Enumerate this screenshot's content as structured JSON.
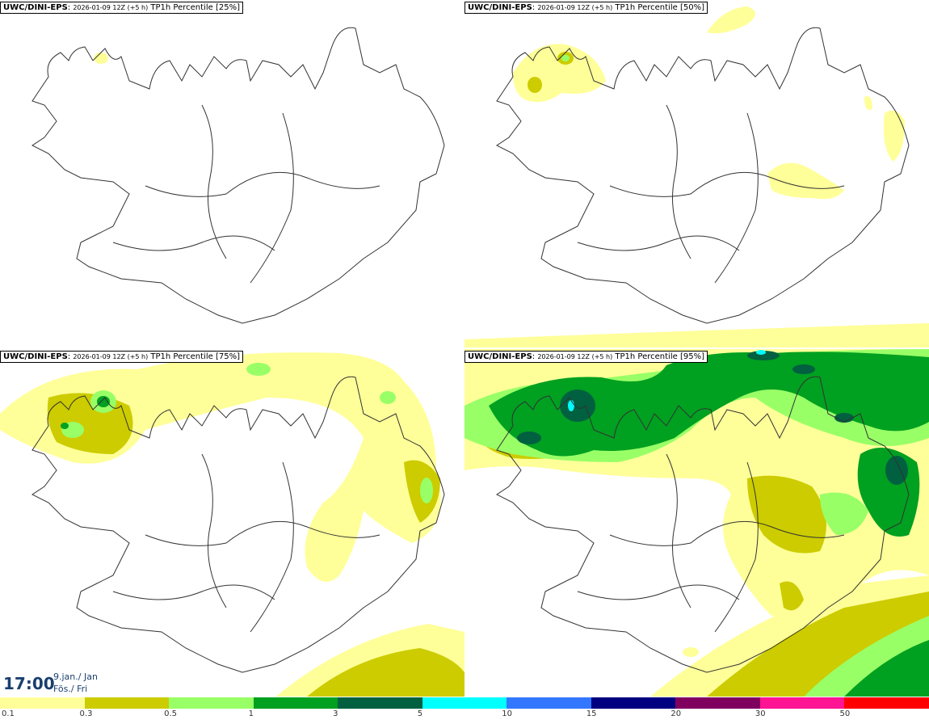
{
  "colors": {
    "p0_1": "#ffff99",
    "p0_3": "#cccc00",
    "p0_5": "#99ff66",
    "p1": "#00a020",
    "p3": "#006040",
    "p5": "#00ffff",
    "p10": "#3377ff",
    "p15": "#000080",
    "p20": "#800060",
    "p30": "#ff1493",
    "p50": "#ff0000",
    "coast": "#333333"
  },
  "panels": [
    {
      "model": "UWC/DINI-EPS",
      "run": "2026-01-09 12Z (+5 h)",
      "field": "TP1h Percentile [25%]"
    },
    {
      "model": "UWC/DINI-EPS",
      "run": "2026-01-09 12Z (+5 h)",
      "field": "TP1h Percentile [50%]"
    },
    {
      "model": "UWC/DINI-EPS",
      "run": "2026-01-09 12Z (+5 h)",
      "field": "TP1h Percentile [75%]"
    },
    {
      "model": "UWC/DINI-EPS",
      "run": "2026-01-09 12Z (+5 h)",
      "field": "TP1h Percentile [95%]"
    }
  ],
  "valid": {
    "time": "17:00",
    "date_line1": "9.jan./ Jan",
    "date_line2": "Fös./ Fri"
  },
  "legend": {
    "labels": [
      "0.1",
      "0.3",
      "0.5",
      "1",
      "3",
      "5",
      "10",
      "15",
      "20",
      "30",
      "50"
    ],
    "colors": [
      "#ffff99",
      "#cccc00",
      "#99ff66",
      "#00a020",
      "#006040",
      "#00ffff",
      "#3377ff",
      "#000080",
      "#800060",
      "#ff1493",
      "#ff0000"
    ]
  }
}
